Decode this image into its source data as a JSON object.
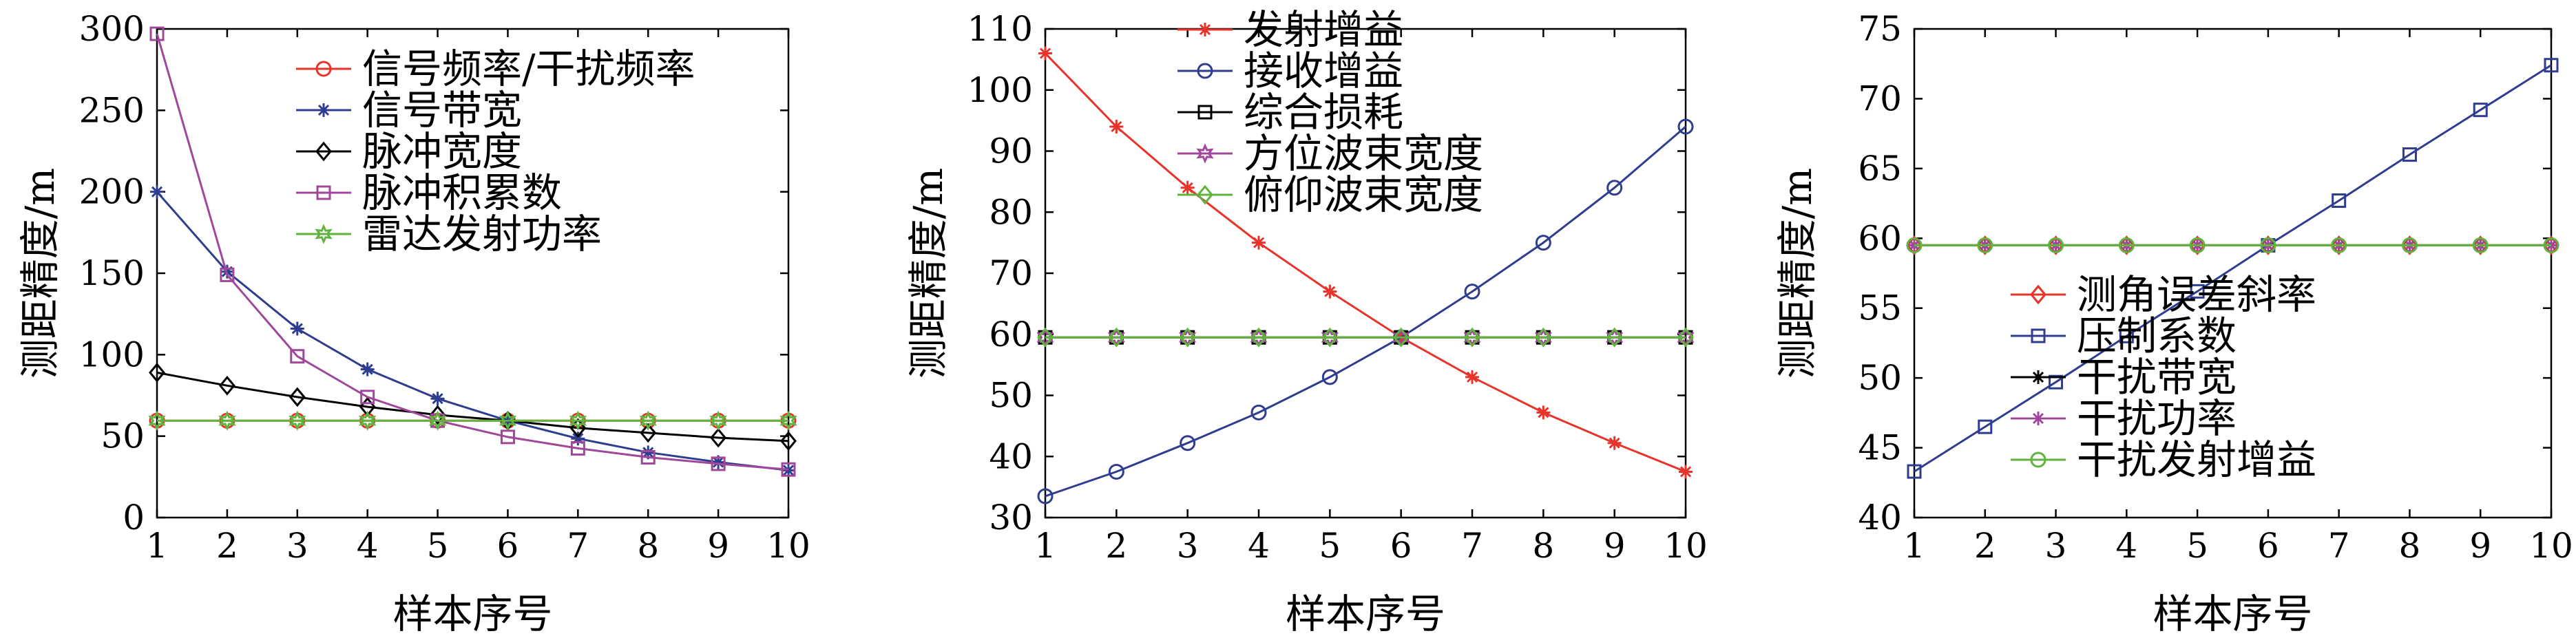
{
  "chart_data": [
    {
      "type": "line",
      "xlabel": "样本序号",
      "ylabel": "测距精度/m",
      "xlim": [
        1,
        10
      ],
      "ylim": [
        0,
        300
      ],
      "xticks": [
        "1",
        "2",
        "3",
        "4",
        "5",
        "6",
        "7",
        "8",
        "9",
        "10"
      ],
      "yticks": [
        "0",
        "50",
        "100",
        "150",
        "200",
        "250",
        "300"
      ],
      "legend_position": "top-right",
      "x": [
        1,
        2,
        3,
        4,
        5,
        6,
        7,
        8,
        9,
        10
      ],
      "series": [
        {
          "name": "信号频率/干扰频率",
          "color": "#e8332a",
          "marker": "circle",
          "values": [
            59.5,
            59.5,
            59.5,
            59.5,
            59.5,
            59.5,
            59.5,
            59.5,
            59.5,
            59.5
          ]
        },
        {
          "name": "信号带宽",
          "color": "#2e3d8f",
          "marker": "asterisk",
          "values": [
            200,
            151,
            116,
            91,
            73,
            59.5,
            48.5,
            40,
            34,
            29
          ]
        },
        {
          "name": "脉冲宽度",
          "color": "#000000",
          "marker": "diamond",
          "values": [
            89,
            81,
            74,
            68,
            63,
            59.5,
            55,
            52,
            49,
            47
          ]
        },
        {
          "name": "脉冲积累数",
          "color": "#a0479b",
          "marker": "square",
          "values": [
            297,
            149,
            99,
            74,
            59.5,
            49.5,
            42.5,
            37,
            33,
            29.5
          ]
        },
        {
          "name": "雷达发射功率",
          "color": "#61b33e",
          "marker": "hexagram",
          "values": [
            59.5,
            59.5,
            59.5,
            59.5,
            59.5,
            59.5,
            59.5,
            59.5,
            59.5,
            59.5
          ]
        }
      ]
    },
    {
      "type": "line",
      "xlabel": "样本序号",
      "ylabel": "测距精度/m",
      "xlim": [
        1,
        10
      ],
      "ylim": [
        30,
        110
      ],
      "xticks": [
        "1",
        "2",
        "3",
        "4",
        "5",
        "6",
        "7",
        "8",
        "9",
        "10"
      ],
      "yticks": [
        "30",
        "40",
        "50",
        "60",
        "70",
        "80",
        "90",
        "100",
        "110"
      ],
      "legend_position": "top-right",
      "x": [
        1,
        2,
        3,
        4,
        5,
        6,
        7,
        8,
        9,
        10
      ],
      "series": [
        {
          "name": "发射增益",
          "color": "#e8332a",
          "marker": "asterisk",
          "values": [
            106,
            94,
            84,
            75,
            67,
            59.5,
            53,
            47.2,
            42.2,
            37.5
          ]
        },
        {
          "name": "接收增益",
          "color": "#2e3d8f",
          "marker": "circle",
          "values": [
            33.5,
            37.5,
            42.2,
            47.2,
            53,
            59.5,
            67,
            75,
            84,
            94
          ]
        },
        {
          "name": "综合损耗",
          "color": "#000000",
          "marker": "square",
          "values": [
            59.5,
            59.5,
            59.5,
            59.5,
            59.5,
            59.5,
            59.5,
            59.5,
            59.5,
            59.5
          ]
        },
        {
          "name": "方位波束宽度",
          "color": "#a0479b",
          "marker": "hexagram",
          "values": [
            59.5,
            59.5,
            59.5,
            59.5,
            59.5,
            59.5,
            59.5,
            59.5,
            59.5,
            59.5
          ]
        },
        {
          "name": "俯仰波束宽度",
          "color": "#61b33e",
          "marker": "diamond",
          "values": [
            59.5,
            59.5,
            59.5,
            59.5,
            59.5,
            59.5,
            59.5,
            59.5,
            59.5,
            59.5
          ]
        }
      ]
    },
    {
      "type": "line",
      "xlabel": "样本序号",
      "ylabel": "测距精度/m",
      "xlim": [
        1,
        10
      ],
      "ylim": [
        40,
        75
      ],
      "xticks": [
        "1",
        "2",
        "3",
        "4",
        "5",
        "6",
        "7",
        "8",
        "9",
        "10"
      ],
      "yticks": [
        "40",
        "45",
        "50",
        "55",
        "60",
        "65",
        "70",
        "75"
      ],
      "legend_position": "bottom-right",
      "x": [
        1,
        2,
        3,
        4,
        5,
        6,
        7,
        8,
        9,
        10
      ],
      "series": [
        {
          "name": "测角误差斜率",
          "color": "#e8332a",
          "marker": "diamond",
          "values": [
            59.5,
            59.5,
            59.5,
            59.5,
            59.5,
            59.5,
            59.5,
            59.5,
            59.5,
            59.5
          ]
        },
        {
          "name": "压制系数",
          "color": "#2e3d8f",
          "marker": "square",
          "values": [
            43.3,
            46.5,
            49.7,
            53,
            56.2,
            59.5,
            62.7,
            66,
            69.2,
            72.4
          ]
        },
        {
          "name": "干扰带宽",
          "color": "#000000",
          "marker": "asterisk",
          "values": [
            59.5,
            59.5,
            59.5,
            59.5,
            59.5,
            59.5,
            59.5,
            59.5,
            59.5,
            59.5
          ]
        },
        {
          "name": "干扰功率",
          "color": "#a0479b",
          "marker": "asterisk",
          "values": [
            59.5,
            59.5,
            59.5,
            59.5,
            59.5,
            59.5,
            59.5,
            59.5,
            59.5,
            59.5
          ]
        },
        {
          "name": "干扰发射增益",
          "color": "#61b33e",
          "marker": "circle",
          "values": [
            59.5,
            59.5,
            59.5,
            59.5,
            59.5,
            59.5,
            59.5,
            59.5,
            59.5,
            59.5
          ]
        }
      ]
    }
  ]
}
